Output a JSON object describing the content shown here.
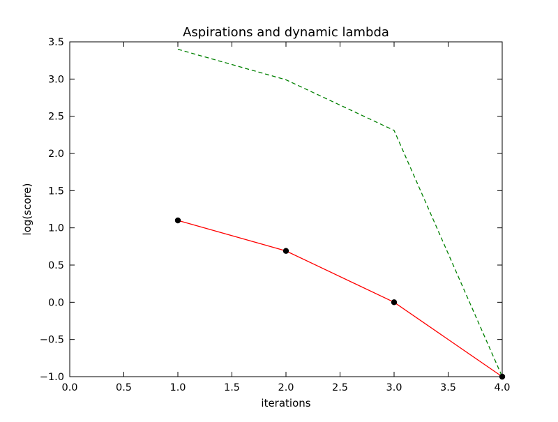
{
  "chart_data": {
    "type": "line",
    "title": "Aspirations and dynamic lambda",
    "xlabel": "iterations",
    "ylabel": "log(score)",
    "xlim": [
      0.0,
      4.0
    ],
    "ylim": [
      -1.0,
      3.5
    ],
    "xticks": [
      0.0,
      0.5,
      1.0,
      1.5,
      2.0,
      2.5,
      3.0,
      3.5,
      4.0
    ],
    "xtick_labels": [
      "0.0",
      "0.5",
      "1.0",
      "1.5",
      "2.0",
      "2.5",
      "3.0",
      "3.5",
      "4.0"
    ],
    "yticks": [
      -1.0,
      -0.5,
      0.0,
      0.5,
      1.0,
      1.5,
      2.0,
      2.5,
      3.0,
      3.5
    ],
    "ytick_labels": [
      "−1.0",
      "−0.5",
      "0.0",
      "0.5",
      "1.0",
      "1.5",
      "2.0",
      "2.5",
      "3.0",
      "3.5"
    ],
    "grid": false,
    "legend": "none",
    "series": [
      {
        "style": "dashed",
        "color": "#008000",
        "marker": "none",
        "x": [
          1,
          2,
          3,
          4
        ],
        "y": [
          3.4,
          2.99,
          2.31,
          -1.0
        ]
      },
      {
        "style": "solid",
        "color": "#ff0000",
        "marker": "circle",
        "marker_color": "#000000",
        "x": [
          1,
          2,
          3,
          4
        ],
        "y": [
          1.1,
          0.69,
          0.0,
          -1.0
        ]
      }
    ]
  }
}
